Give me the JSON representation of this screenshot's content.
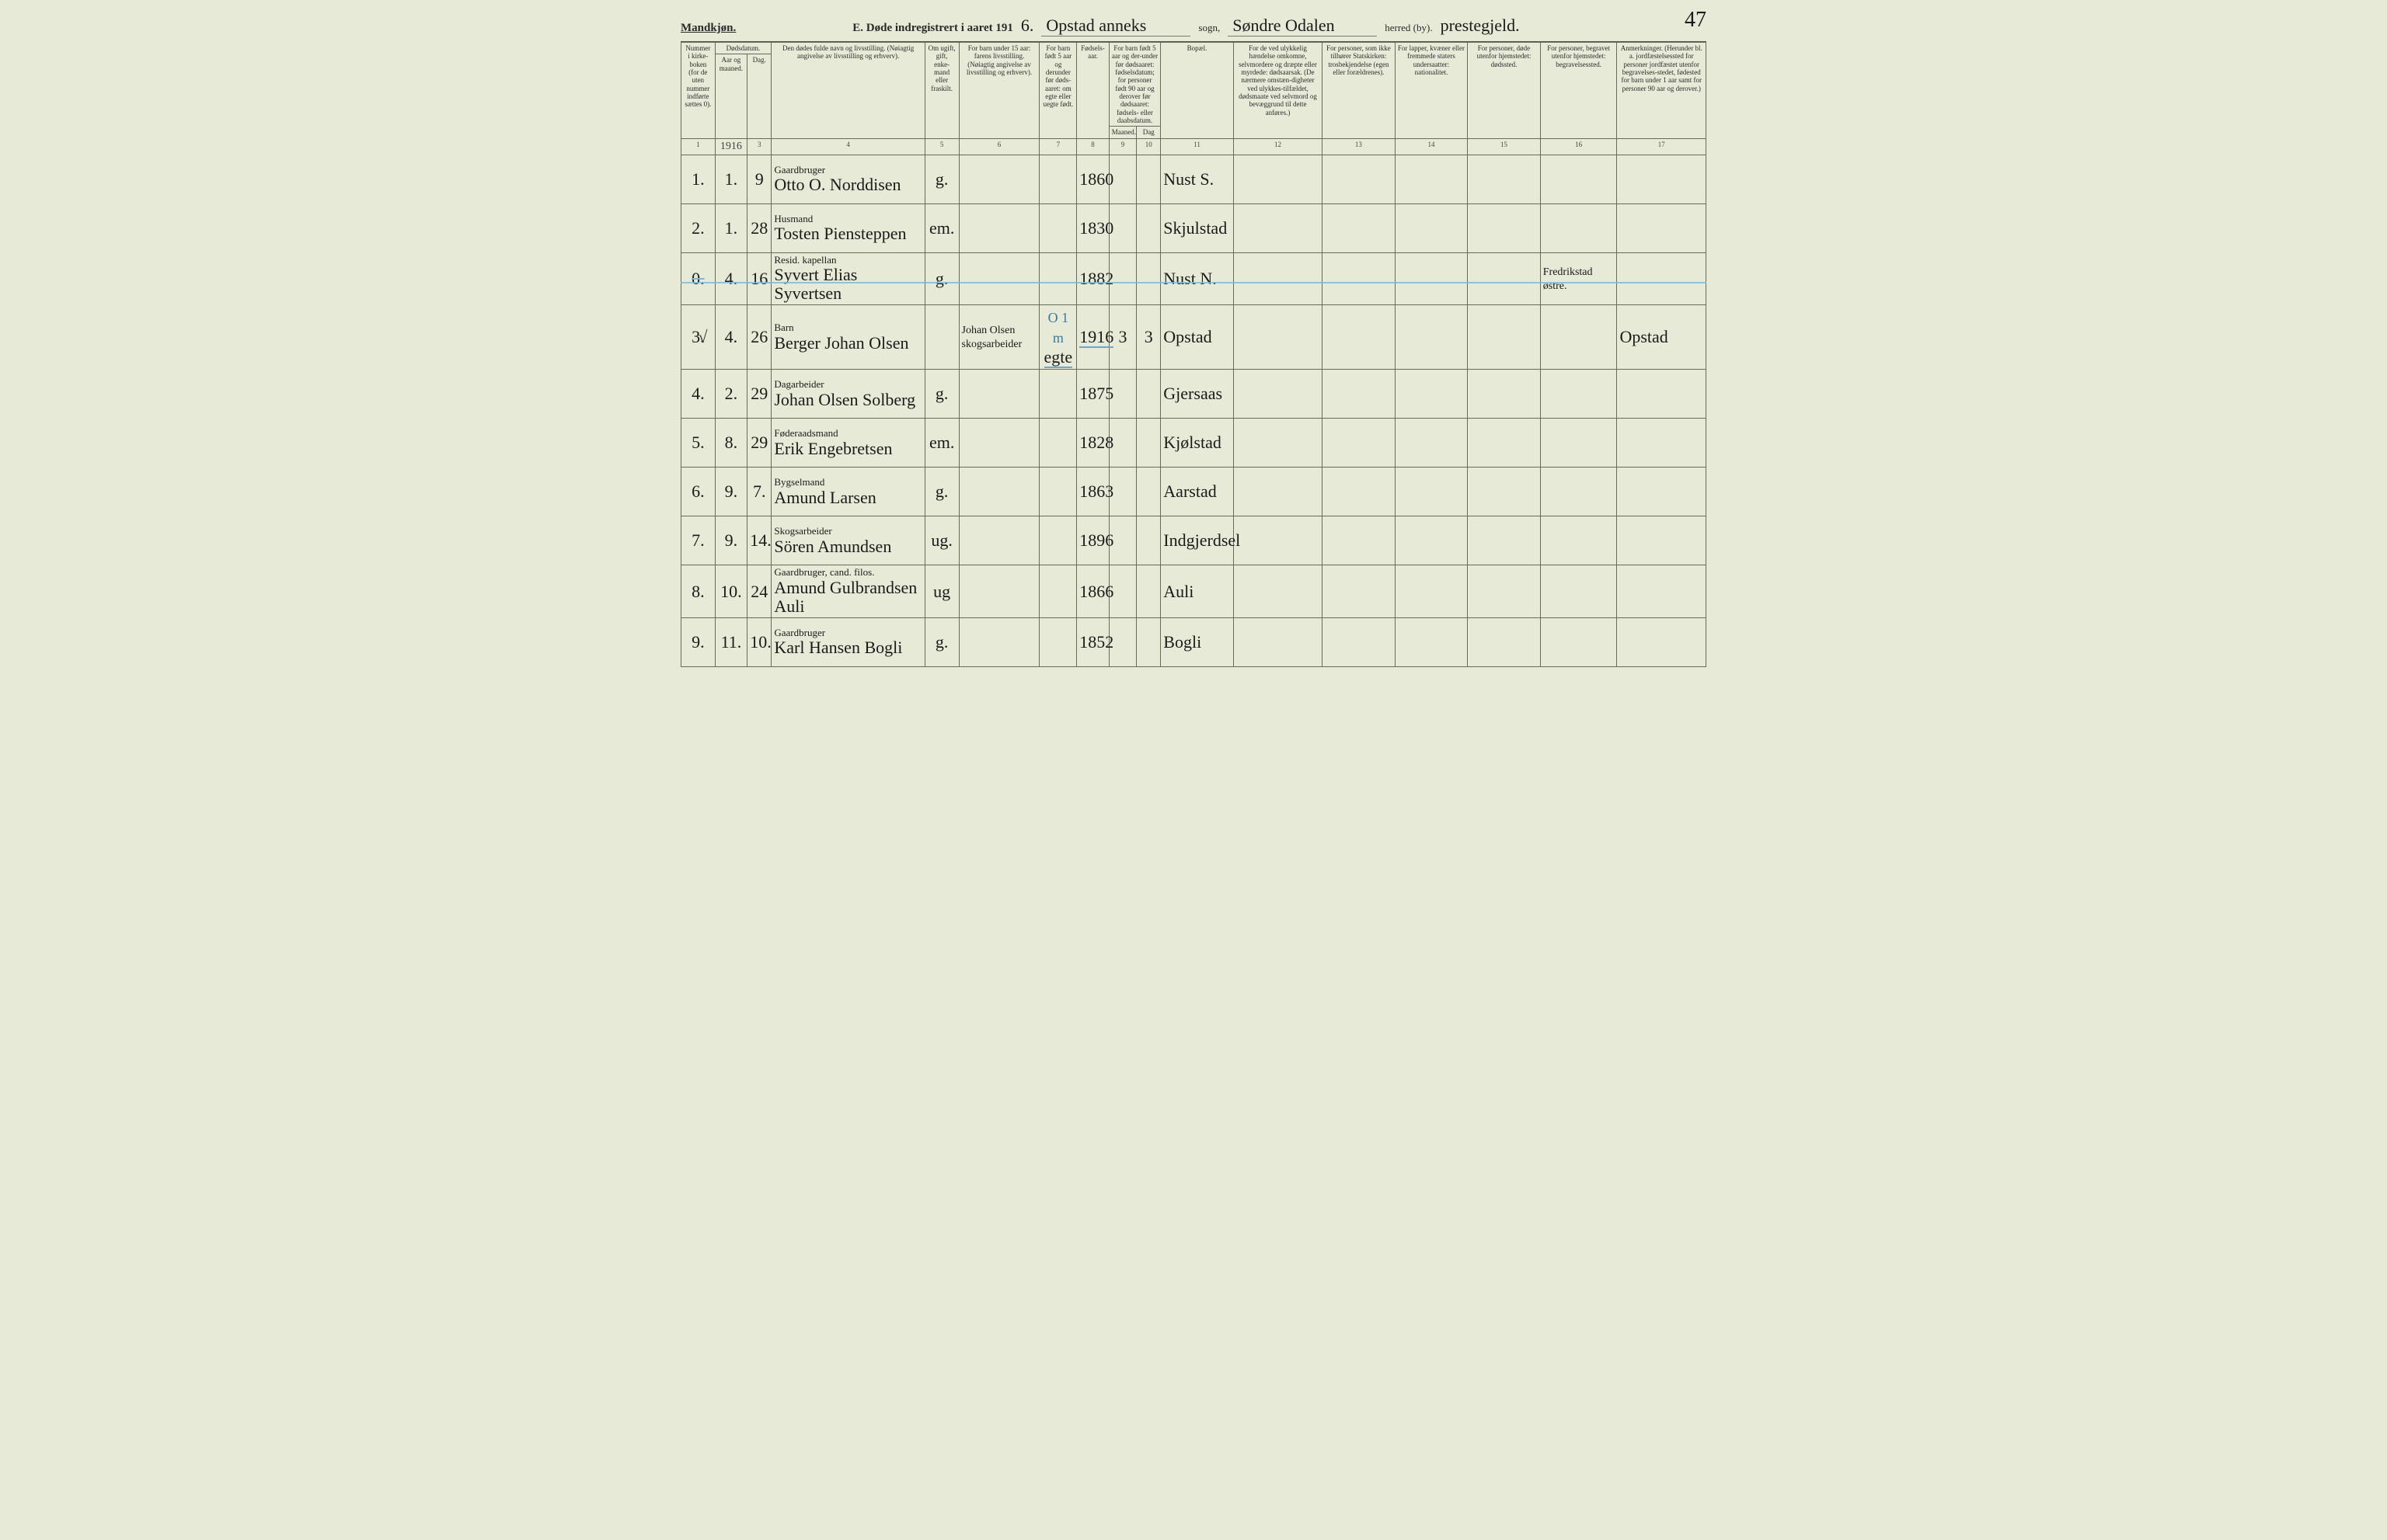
{
  "header": {
    "mandkjon": "Mandkjøn.",
    "title_prefix": "E.  Døde indregistrert i aaret 191",
    "year_suffix": "6.",
    "parish": "Opstad anneks",
    "sogn_label": "sogn,",
    "district": "Søndre Odalen",
    "herred_label": "herred (by).",
    "prestegjeld": "prestegjeld.",
    "page_number": "47"
  },
  "columns": {
    "c1": "Nummer i kirke-boken (for de uten nummer indførte sættes 0).",
    "c2": "Dødsdatum.",
    "c2a": "Aar og maaned.",
    "c2b": "Dag.",
    "c3": "Den dødes fulde navn og livsstilling. (Nøiagtig angivelse av livsstilling og erhverv).",
    "c4": "Om ugift, gift, enke-mand eller fraskilt.",
    "c5": "For barn under 15 aar: farens livsstilling. (Nøiagtig angivelse av livsstilling og erhverv).",
    "c6": "For barn født 5 aar og derunder før døds-aaret: om egte eller uegte født.",
    "c7": "Fødsels-aar.",
    "c8": "For barn født 5 aar og der-under før dødsaaret: fødselsdatum; for personer født 90 aar og derover før dødsaaret: fødsels- eller daabsdatum.",
    "c8a": "Maaned.",
    "c8b": "Dag",
    "c9": "Bopæl.",
    "c10": "For de ved ulykkelig hændelse omkomne, selvmordere og dræpte eller myrdede: dødsaarsak. (De nærmere omstæn-digheter ved ulykkes-tilfældet, dødsmaate ved selvmord og bevæggrund til dette anføres.)",
    "c11": "For personer, som ikke tilhører Statskirken: trosbekjendelse (egen eller forældrenes).",
    "c12": "For lapper, kvæner eller fremmede staters undersaatter: nationalitet.",
    "c13": "For personer, døde utenfor hjemstedet: dødssted.",
    "c14": "For personer, begravet utenfor hjemstedet: begravelsessted.",
    "c15": "Anmerkninger. (Herunder bl. a. jordfæstelsessted for personer jordfæstet utenfor begravelses-stedet, fødested for barn under 1 aar samt for personer 90 aar og derover.)"
  },
  "colnums": [
    "1",
    "2",
    "3",
    "4",
    "5",
    "6",
    "7",
    "8",
    "9",
    "10",
    "11",
    "12",
    "13",
    "14",
    "15",
    "16",
    "17"
  ],
  "year_cell": "1916",
  "rows": [
    {
      "no": "1.",
      "mo": "1.",
      "day": "9",
      "occ": "Gaardbruger",
      "name": "Otto O. Norddisen",
      "ms": "g.",
      "father": "",
      "egte": "",
      "byear": "1860",
      "bm": "",
      "bd": "",
      "place": "Nust S.",
      "c10": "",
      "c11": "",
      "c12": "",
      "c13": "",
      "c14": "",
      "c15": ""
    },
    {
      "no": "2.",
      "mo": "1.",
      "day": "28",
      "occ": "Husmand",
      "name": "Tosten Piensteppen",
      "ms": "em.",
      "father": "",
      "egte": "",
      "byear": "1830",
      "bm": "",
      "bd": "",
      "place": "Skjulstad",
      "c10": "",
      "c11": "",
      "c12": "",
      "c13": "",
      "c14": "",
      "c15": ""
    },
    {
      "no": "0.",
      "mo": "4.",
      "day": "16",
      "occ": "Resid. kapellan",
      "name": "Syvert Elias Syvertsen",
      "ms": "g.",
      "father": "",
      "egte": "",
      "byear": "1882",
      "bm": "",
      "bd": "",
      "place": "Nust N.",
      "c10": "",
      "c11": "",
      "c12": "",
      "c13": "",
      "c14": "Fredrikstad østre.",
      "c15": ""
    },
    {
      "no": "3.",
      "mo": "4.",
      "day": "26",
      "occ": "Barn",
      "name": "Berger Johan Olsen",
      "ms": "",
      "father": "Johan Olsen skogsarbeider",
      "egte": "egte",
      "byear": "1916",
      "bm": "3",
      "bd": "3",
      "place": "Opstad",
      "c10": "",
      "c11": "",
      "c12": "",
      "c13": "",
      "c14": "",
      "c15": "Opstad",
      "blue_note": "O 1 m"
    },
    {
      "no": "4.",
      "mo": "2.",
      "day": "29",
      "occ": "Dagarbeider",
      "name": "Johan Olsen Solberg",
      "ms": "g.",
      "father": "",
      "egte": "",
      "byear": "1875",
      "bm": "",
      "bd": "",
      "place": "Gjersaas",
      "c10": "",
      "c11": "",
      "c12": "",
      "c13": "",
      "c14": "",
      "c15": ""
    },
    {
      "no": "5.",
      "mo": "8.",
      "day": "29",
      "occ": "Føderaadsmand",
      "name": "Erik Engebretsen",
      "ms": "em.",
      "father": "",
      "egte": "",
      "byear": "1828",
      "bm": "",
      "bd": "",
      "place": "Kjølstad",
      "c10": "",
      "c11": "",
      "c12": "",
      "c13": "",
      "c14": "",
      "c15": ""
    },
    {
      "no": "6.",
      "mo": "9.",
      "day": "7.",
      "occ": "Bygselmand",
      "name": "Amund Larsen",
      "ms": "g.",
      "father": "",
      "egte": "",
      "byear": "1863",
      "bm": "",
      "bd": "",
      "place": "Aarstad",
      "c10": "",
      "c11": "",
      "c12": "",
      "c13": "",
      "c14": "",
      "c15": ""
    },
    {
      "no": "7.",
      "mo": "9.",
      "day": "14.",
      "occ": "Skogsarbeider",
      "name": "Sören Amundsen",
      "ms": "ug.",
      "father": "",
      "egte": "",
      "byear": "1896",
      "bm": "",
      "bd": "",
      "place": "Indgjerdsel",
      "c10": "",
      "c11": "",
      "c12": "",
      "c13": "",
      "c14": "",
      "c15": ""
    },
    {
      "no": "8.",
      "mo": "10.",
      "day": "24",
      "occ": "Gaardbruger, cand. filos.",
      "name": "Amund Gulbrandsen Auli",
      "ms": "ug",
      "father": "",
      "egte": "",
      "byear": "1866",
      "bm": "",
      "bd": "",
      "place": "Auli",
      "c10": "",
      "c11": "",
      "c12": "",
      "c13": "",
      "c14": "",
      "c15": ""
    },
    {
      "no": "9.",
      "mo": "11.",
      "day": "10.",
      "occ": "Gaardbruger",
      "name": "Karl Hansen Bogli",
      "ms": "g.",
      "father": "",
      "egte": "",
      "byear": "1852",
      "bm": "",
      "bd": "",
      "place": "Bogli",
      "c10": "",
      "c11": "",
      "c12": "",
      "c13": "",
      "c14": "",
      "c15": ""
    }
  ]
}
